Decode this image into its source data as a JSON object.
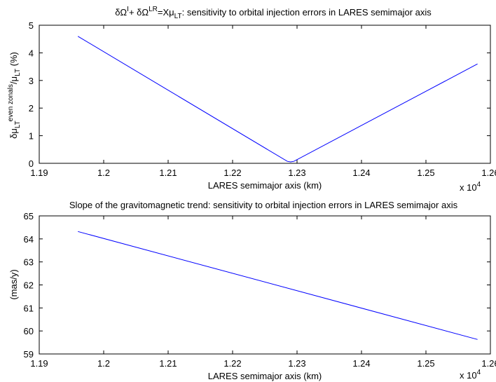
{
  "chart_data": [
    {
      "type": "line",
      "title_parts": {
        "d1": "δΩ",
        "sup1": "I",
        "plus": "+ δΩ",
        "sup2": "LR",
        "eq": "=Xμ",
        "sub": "LT",
        "rest": ": sensitivity to orbital injection errors in LARES semimajor axis"
      },
      "xlabel": "LARES semimajor axis (km)",
      "ylabel_parts": {
        "a": "δμ",
        "sub1": "LT",
        "sup1": "even zonals",
        "b": "/μ",
        "sub2": "LT",
        "c": " (%)"
      },
      "x_multiplier": {
        "base": "x 10",
        "exp": "4"
      },
      "xlim": [
        1.19,
        1.26
      ],
      "ylim": [
        0,
        5
      ],
      "xticks": [
        "1.19",
        "1.2",
        "1.21",
        "1.22",
        "1.23",
        "1.24",
        "1.25",
        "1.26"
      ],
      "yticks": [
        "0",
        "1",
        "2",
        "3",
        "4",
        "5"
      ],
      "line_color": "#0000ff",
      "series": [
        {
          "x": [
            1.196,
            1.2285,
            1.229,
            1.2295,
            1.258
          ],
          "y": [
            4.6,
            0.07,
            0.05,
            0.07,
            3.6
          ]
        }
      ]
    },
    {
      "type": "line",
      "title": "Slope of the gravitomagnetic trend: sensitivity to orbital injection errors in LARES semimajor axis",
      "xlabel": "LARES semimajor axis (km)",
      "ylabel": "(mas/y)",
      "x_multiplier": {
        "base": "x 10",
        "exp": "4"
      },
      "xlim": [
        1.19,
        1.26
      ],
      "ylim": [
        59,
        65
      ],
      "xticks": [
        "1.19",
        "1.2",
        "1.21",
        "1.22",
        "1.23",
        "1.24",
        "1.25",
        "1.26"
      ],
      "yticks": [
        "59",
        "60",
        "61",
        "62",
        "63",
        "64",
        "65"
      ],
      "line_color": "#0000ff",
      "series": [
        {
          "x": [
            1.196,
            1.258
          ],
          "y": [
            64.32,
            59.63
          ]
        }
      ]
    }
  ]
}
